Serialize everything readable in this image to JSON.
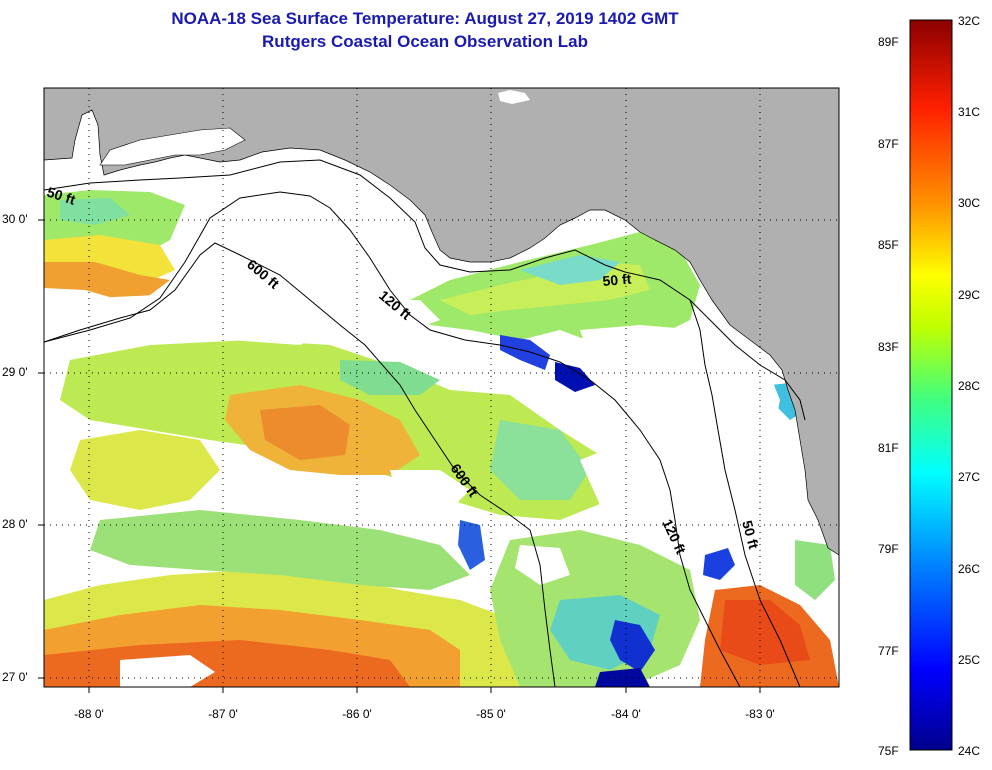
{
  "header": {
    "title": "NOAA-18 Sea Surface Temperature:  August 27, 2019 1402 GMT",
    "subtitle": "Rutgers Coastal Ocean Observation Lab"
  },
  "map": {
    "lon_range": [
      -88.33,
      -82.5
    ],
    "lat_range": [
      26.95,
      30.85
    ],
    "lat_ticks": [
      {
        "value": 30,
        "label": "30 0'"
      },
      {
        "value": 29,
        "label": "29 0'"
      },
      {
        "value": 28,
        "label": "28 0'"
      },
      {
        "value": 27,
        "label": "27 0'"
      }
    ],
    "lon_ticks": [
      {
        "value": -88,
        "label": "-88 0'"
      },
      {
        "value": -87,
        "label": "-87 0'"
      },
      {
        "value": -86,
        "label": "-86 0'"
      },
      {
        "value": -85,
        "label": "-85 0'"
      },
      {
        "value": -84,
        "label": "-84 0'"
      },
      {
        "value": -83,
        "label": "-83 0'"
      }
    ],
    "land_color": "#b0b0b0",
    "cloud_color": "#ffffff",
    "contour_labels": [
      {
        "id": "c50w",
        "text": "50 ft"
      },
      {
        "id": "c600a",
        "text": "600 ft"
      },
      {
        "id": "c120a",
        "text": "120 ft"
      },
      {
        "id": "c50e",
        "text": "50 ft"
      },
      {
        "id": "c600b",
        "text": "600 ft"
      },
      {
        "id": "c120b",
        "text": "120 ft"
      },
      {
        "id": "c50s",
        "text": "50 ft"
      }
    ]
  },
  "colorbar": {
    "celsius": [
      {
        "value": 32,
        "label": "32C"
      },
      {
        "value": 31,
        "label": "31C"
      },
      {
        "value": 30,
        "label": "30C"
      },
      {
        "value": 29,
        "label": "29C"
      },
      {
        "value": 28,
        "label": "28C"
      },
      {
        "value": 27,
        "label": "27C"
      },
      {
        "value": 26,
        "label": "26C"
      },
      {
        "value": 25,
        "label": "25C"
      },
      {
        "value": 24,
        "label": "24C"
      }
    ],
    "fahrenheit": [
      {
        "value": 89,
        "label": "89F"
      },
      {
        "value": 87,
        "label": "87F"
      },
      {
        "value": 85,
        "label": "85F"
      },
      {
        "value": 83,
        "label": "83F"
      },
      {
        "value": 81,
        "label": "81F"
      },
      {
        "value": 79,
        "label": "79F"
      },
      {
        "value": 77,
        "label": "77F"
      },
      {
        "value": 75,
        "label": "75F"
      }
    ],
    "colors": [
      "#00008b",
      "#0000ff",
      "#0080ff",
      "#00ffff",
      "#40ff80",
      "#c0ff00",
      "#ffff00",
      "#ff9000",
      "#ff2000",
      "#8b0000"
    ]
  }
}
